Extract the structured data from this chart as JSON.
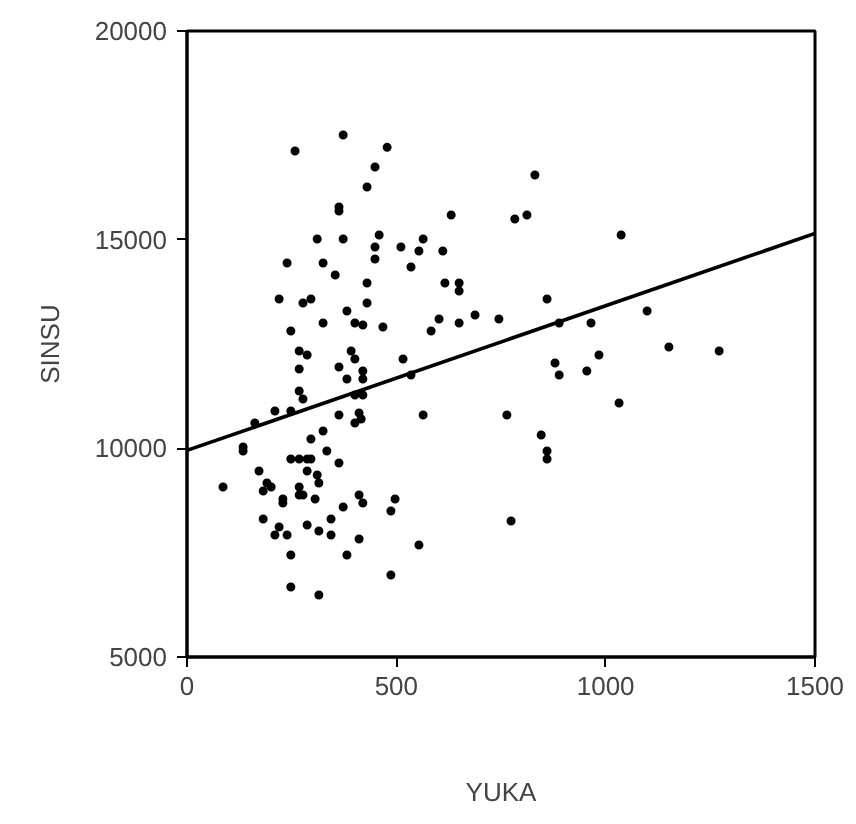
{
  "chart_data": {
    "type": "scatter",
    "xlabel": "YUKA",
    "ylabel": "SINSU",
    "xlim": [
      0,
      1500
    ],
    "ylim": [
      5000,
      20000
    ],
    "xticks": [
      0,
      500,
      1000,
      1500
    ],
    "yticks": [
      5000,
      10000,
      15000,
      20000
    ],
    "grid": false,
    "series": [
      {
        "marker": "circle",
        "color": "#000000",
        "x": [
          831,
          631,
          783,
          812,
          1037,
          564,
          554,
          611,
          511,
          535,
          616,
          650,
          650,
          860,
          1099,
          602,
          583,
          650,
          688,
          745,
          889,
          965,
          1151,
          1271,
          879,
          984,
          889,
          955,
          516,
          535,
          564,
          764,
          1032,
          846,
          860,
          860,
          774,
          554,
          449,
          430,
          363,
          363,
          311,
          373,
          459,
          449,
          449,
          239,
          325,
          354,
          430,
          220,
          277,
          296,
          430,
          382,
          325,
          401,
          420,
          468,
          248,
          268,
          287,
          392,
          268,
          363,
          401,
          382,
          420,
          420,
          268,
          277,
          401,
          420,
          210,
          248,
          363,
          411,
          416,
          162,
          401,
          325,
          296,
          134,
          134,
          334,
          248,
          268,
          287,
          296,
          363,
          172,
          287,
          311,
          86,
          191,
          201,
          182,
          268,
          315,
          268,
          277,
          229,
          229,
          306,
          411,
          420,
          497,
          373,
          487,
          182,
          344,
          287,
          220,
          210,
          239,
          315,
          344,
          411,
          248,
          382,
          487,
          248,
          315,
          258,
          373,
          478
        ],
        "values": [
          16550,
          15591,
          15496,
          15591,
          15112,
          15016,
          14729,
          14729,
          14825,
          14346,
          13962,
          13962,
          13770,
          13579,
          13291,
          13099,
          12812,
          13004,
          13195,
          13099,
          13004,
          13004,
          12429,
          12333,
          12045,
          12237,
          11758,
          11854,
          12141,
          11758,
          10799,
          10799,
          11087,
          10320,
          9937,
          9745,
          8260,
          7684,
          16740,
          16262,
          15783,
          15687,
          15016,
          15016,
          15112,
          14825,
          14537,
          14441,
          14441,
          14154,
          13962,
          13579,
          13483,
          13579,
          13483,
          13291,
          13004,
          13004,
          12956,
          12908,
          12812,
          12333,
          12237,
          12333,
          11902,
          11949,
          12141,
          11662,
          11854,
          11662,
          11374,
          11183,
          11278,
          11278,
          10895,
          10895,
          10799,
          10847,
          10703,
          10607,
          10607,
          10416,
          10224,
          10033,
          9937,
          9937,
          9745,
          9745,
          9745,
          9745,
          9649,
          9458,
          9458,
          9362,
          9074,
          9170,
          9074,
          8978,
          9074,
          9170,
          8882,
          8882,
          8787,
          8691,
          8787,
          8882,
          8691,
          8787,
          8595,
          8499,
          8307,
          8307,
          8164,
          8116,
          7924,
          7924,
          8020,
          7924,
          7828,
          7444,
          7444,
          6964,
          6678,
          6486,
          17125,
          17508,
          17212
        ]
      },
      {
        "type": "line",
        "color": "#000000",
        "line_style": "solid",
        "x": [
          0,
          1500
        ],
        "values": [
          9950,
          15150
        ]
      }
    ]
  }
}
